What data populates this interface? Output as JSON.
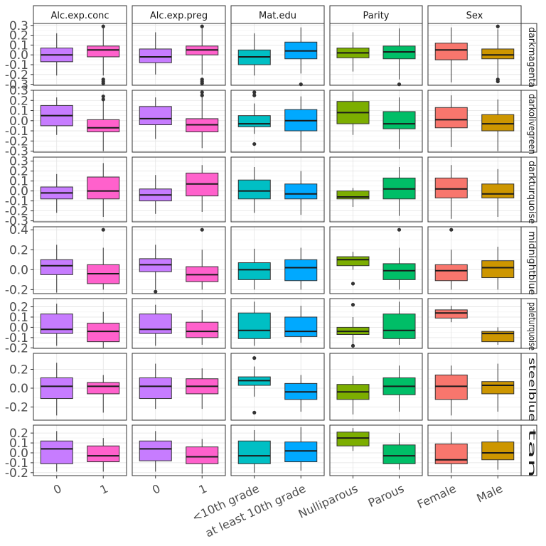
{
  "chart_data": {
    "type": "boxplot",
    "facet_columns": [
      "Alc.exp.conc",
      "Alc.exp.preg",
      "Mat.edu",
      "Parity",
      "Sex"
    ],
    "facet_rows": [
      "darkmagenta",
      "darkolivegreen",
      "darkturquoise",
      "midnightblue",
      "paleturquoise",
      "steelblue",
      "tan"
    ],
    "column_categories": [
      [
        "0",
        "1"
      ],
      [
        "0",
        "1"
      ],
      [
        "<10th grade",
        "at least 10th grade"
      ],
      [
        "Nulliparous",
        "Parous"
      ],
      [
        "Female",
        "Male"
      ]
    ],
    "colors": [
      [
        "#c77cff",
        "#ff61cc"
      ],
      [
        "#c77cff",
        "#ff61cc"
      ],
      [
        "#00bfc4",
        "#00a9ff"
      ],
      [
        "#7cae00",
        "#00be67"
      ],
      [
        "#f8766d",
        "#cd9600"
      ]
    ],
    "row_scales": [
      {
        "ylim": [
          -0.31,
          0.32
        ],
        "ticks": [
          -0.3,
          -0.2,
          -0.1,
          0.0,
          0.1,
          0.2,
          0.3
        ],
        "tick_labels": [
          "-0.3",
          "-0.2",
          "-0.1",
          "0.0",
          "0.1",
          "0.2",
          "0.3"
        ]
      },
      {
        "ylim": [
          -0.31,
          0.3
        ],
        "ticks": [
          -0.3,
          -0.2,
          -0.1,
          0.0,
          0.1,
          0.2,
          0.3
        ],
        "tick_labels": [
          "-0.3",
          "-0.2",
          "-0.1",
          "0.0",
          "0.1",
          "0.2",
          "0.3"
        ]
      },
      {
        "ylim": [
          -0.31,
          0.34
        ],
        "ticks": [
          -0.3,
          -0.2,
          -0.1,
          0.0,
          0.1,
          0.2,
          0.3
        ],
        "tick_labels": [
          "-0.3",
          "-0.2",
          "-0.1",
          "0.0",
          "0.1",
          "0.2",
          "0.3"
        ]
      },
      {
        "ylim": [
          -0.24,
          0.43
        ],
        "ticks": [
          -0.2,
          0.0,
          0.2,
          0.4
        ],
        "tick_labels": [
          "-0.2",
          "0.0",
          "0.2",
          "0.4"
        ]
      },
      {
        "ylim": [
          -0.205,
          0.28
        ],
        "ticks": [
          -0.2,
          -0.1,
          0.0,
          0.1,
          0.2
        ],
        "tick_labels": [
          "-0.2",
          "-0.1",
          "0.0",
          "0.1",
          "0.2"
        ]
      },
      {
        "ylim": [
          -0.34,
          0.37
        ],
        "ticks": [
          -0.2,
          0.0,
          0.2
        ],
        "tick_labels": [
          "-0.2",
          "0.0",
          "0.2"
        ]
      },
      {
        "ylim": [
          -0.23,
          0.28
        ],
        "ticks": [
          -0.2,
          -0.1,
          0.0,
          0.1,
          0.2
        ],
        "tick_labels": [
          "-0.2",
          "-0.1",
          "0.0",
          "0.1",
          "0.2"
        ]
      }
    ],
    "boxes": [
      [
        [
          [
            -0.21,
            -0.07,
            0.0,
            0.07,
            0.22,
            []
          ],
          [
            -0.21,
            -0.02,
            0.05,
            0.09,
            0.28,
            [
              0.29,
              -0.25,
              -0.27,
              -0.29
            ]
          ]
        ],
        [
          [
            -0.2,
            -0.08,
            -0.02,
            0.06,
            0.23,
            []
          ],
          [
            -0.2,
            0.0,
            0.05,
            0.09,
            0.27,
            [
              0.29,
              -0.25,
              -0.27,
              -0.29
            ]
          ]
        ],
        [
          [
            -0.21,
            -0.1,
            -0.02,
            0.05,
            0.22,
            []
          ],
          [
            -0.19,
            -0.04,
            0.04,
            0.13,
            0.28,
            [
              -0.3
            ]
          ]
        ],
        [
          [
            -0.17,
            -0.03,
            0.02,
            0.07,
            0.23,
            []
          ],
          [
            -0.25,
            -0.04,
            0.03,
            0.09,
            0.27,
            [
              -0.3
            ]
          ]
        ],
        [
          [
            -0.28,
            -0.05,
            0.05,
            0.12,
            0.28,
            []
          ],
          [
            -0.23,
            -0.04,
            0.0,
            0.06,
            0.26,
            [
              0.29,
              -0.25,
              -0.27
            ]
          ]
        ]
      ],
      [
        [
          [
            -0.14,
            -0.05,
            0.05,
            0.15,
            0.23,
            []
          ],
          [
            -0.3,
            -0.11,
            -0.07,
            0.01,
            0.2,
            [
              0.24,
              0.21
            ]
          ]
        ],
        [
          [
            -0.18,
            -0.04,
            0.02,
            0.14,
            0.23,
            []
          ],
          [
            -0.27,
            -0.11,
            -0.04,
            0.02,
            0.24,
            [
              0.28,
              0.25
            ]
          ]
        ],
        [
          [
            -0.13,
            -0.06,
            -0.03,
            0.05,
            0.17,
            [
              0.28,
              0.25,
              -0.23
            ]
          ],
          [
            -0.3,
            -0.1,
            0.0,
            0.11,
            0.24,
            []
          ]
        ],
        [
          [
            -0.14,
            -0.03,
            0.08,
            0.19,
            0.29,
            []
          ],
          [
            -0.28,
            -0.08,
            -0.03,
            0.09,
            0.23,
            []
          ]
        ],
        [
          [
            -0.26,
            -0.07,
            0.01,
            0.13,
            0.25,
            []
          ],
          [
            -0.3,
            -0.1,
            -0.03,
            0.06,
            0.21,
            []
          ]
        ]
      ],
      [
        [
          [
            -0.22,
            -0.08,
            -0.02,
            0.04,
            0.17,
            []
          ],
          [
            -0.26,
            -0.08,
            0.0,
            0.14,
            0.28,
            []
          ]
        ],
        [
          [
            -0.23,
            -0.1,
            -0.04,
            0.02,
            0.16,
            []
          ],
          [
            -0.21,
            -0.05,
            0.07,
            0.18,
            0.26,
            []
          ]
        ],
        [
          [
            -0.22,
            -0.08,
            0.0,
            0.11,
            0.24,
            []
          ],
          [
            -0.24,
            -0.08,
            -0.03,
            0.07,
            0.2,
            []
          ]
        ],
        [
          [
            -0.16,
            -0.08,
            -0.06,
            0.0,
            0.03,
            []
          ],
          [
            -0.25,
            -0.08,
            0.02,
            0.13,
            0.24,
            []
          ]
        ],
        [
          [
            -0.28,
            -0.07,
            0.02,
            0.13,
            0.26,
            []
          ],
          [
            -0.26,
            -0.07,
            -0.03,
            0.07,
            0.22,
            []
          ]
        ]
      ],
      [
        [
          [
            -0.23,
            -0.05,
            0.04,
            0.1,
            0.25,
            []
          ],
          [
            -0.2,
            -0.14,
            -0.04,
            0.05,
            0.22,
            [
              0.4
            ]
          ]
        ],
        [
          [
            -0.2,
            -0.02,
            0.05,
            0.11,
            0.25,
            [
              -0.22
            ]
          ],
          [
            -0.2,
            -0.12,
            -0.05,
            0.03,
            0.2,
            [
              0.4
            ]
          ]
        ],
        [
          [
            -0.2,
            -0.1,
            0.0,
            0.07,
            0.21,
            []
          ],
          [
            -0.2,
            -0.11,
            0.02,
            0.1,
            0.22,
            []
          ]
        ],
        [
          [
            0.0,
            0.04,
            0.1,
            0.13,
            0.18,
            [
              -0.14
            ]
          ],
          [
            -0.2,
            -0.1,
            -0.01,
            0.06,
            0.22,
            [
              0.4
            ]
          ]
        ],
        [
          [
            -0.2,
            -0.11,
            -0.01,
            0.05,
            0.2,
            [
              0.4
            ]
          ],
          [
            -0.2,
            -0.08,
            0.02,
            0.09,
            0.23,
            []
          ]
        ]
      ],
      [
        [
          [
            -0.18,
            -0.06,
            -0.02,
            0.13,
            0.23,
            []
          ],
          [
            -0.2,
            -0.14,
            -0.04,
            0.04,
            0.15,
            []
          ]
        ],
        [
          [
            -0.18,
            -0.06,
            -0.02,
            0.13,
            0.22,
            []
          ],
          [
            -0.17,
            -0.1,
            -0.04,
            0.05,
            0.17,
            []
          ]
        ],
        [
          [
            -0.18,
            -0.11,
            -0.03,
            0.14,
            0.25,
            []
          ],
          [
            -0.15,
            -0.09,
            -0.04,
            0.1,
            0.21,
            []
          ]
        ],
        [
          [
            -0.17,
            -0.07,
            -0.04,
            0.0,
            0.1,
            [
              0.22,
              -0.18
            ]
          ],
          [
            -0.17,
            -0.11,
            -0.03,
            0.13,
            0.25,
            []
          ]
        ],
        [
          [
            0.05,
            0.09,
            0.14,
            0.17,
            0.21,
            []
          ],
          [
            -0.17,
            -0.14,
            -0.06,
            -0.04,
            0.0,
            []
          ]
        ]
      ],
      [
        [
          [
            -0.29,
            -0.11,
            0.02,
            0.11,
            0.27,
            []
          ],
          [
            -0.26,
            -0.06,
            0.02,
            0.06,
            0.14,
            []
          ]
        ],
        [
          [
            -0.22,
            -0.11,
            0.02,
            0.11,
            0.26,
            []
          ],
          [
            -0.22,
            -0.06,
            0.02,
            0.1,
            0.21,
            []
          ]
        ],
        [
          [
            -0.09,
            0.03,
            0.08,
            0.12,
            0.23,
            [
              0.32,
              -0.26
            ]
          ],
          [
            -0.25,
            -0.12,
            -0.04,
            0.05,
            0.14,
            []
          ]
        ],
        [
          [
            -0.28,
            -0.12,
            -0.04,
            0.04,
            0.13,
            []
          ],
          [
            -0.25,
            -0.07,
            0.02,
            0.11,
            0.24,
            []
          ]
        ],
        [
          [
            -0.29,
            -0.12,
            0.02,
            0.14,
            0.24,
            []
          ],
          [
            -0.25,
            -0.06,
            0.03,
            0.07,
            0.26,
            []
          ]
        ]
      ],
      [
        [
          [
            -0.19,
            -0.11,
            0.04,
            0.12,
            0.22,
            []
          ],
          [
            -0.19,
            -0.09,
            -0.03,
            0.07,
            0.15,
            []
          ]
        ],
        [
          [
            -0.19,
            -0.08,
            0.04,
            0.12,
            0.22,
            []
          ],
          [
            -0.21,
            -0.11,
            -0.04,
            0.06,
            0.14,
            []
          ]
        ],
        [
          [
            -0.2,
            -0.11,
            -0.03,
            0.12,
            0.23,
            []
          ],
          [
            -0.18,
            -0.09,
            0.02,
            0.11,
            0.26,
            []
          ]
        ],
        [
          [
            0.02,
            0.07,
            0.15,
            0.21,
            0.25,
            []
          ],
          [
            -0.17,
            -0.11,
            -0.03,
            0.08,
            0.2,
            []
          ]
        ],
        [
          [
            -0.2,
            -0.11,
            -0.07,
            0.09,
            0.21,
            []
          ],
          [
            -0.17,
            -0.07,
            0.0,
            0.11,
            0.23,
            []
          ]
        ]
      ]
    ],
    "grid": true,
    "legend": "none"
  }
}
